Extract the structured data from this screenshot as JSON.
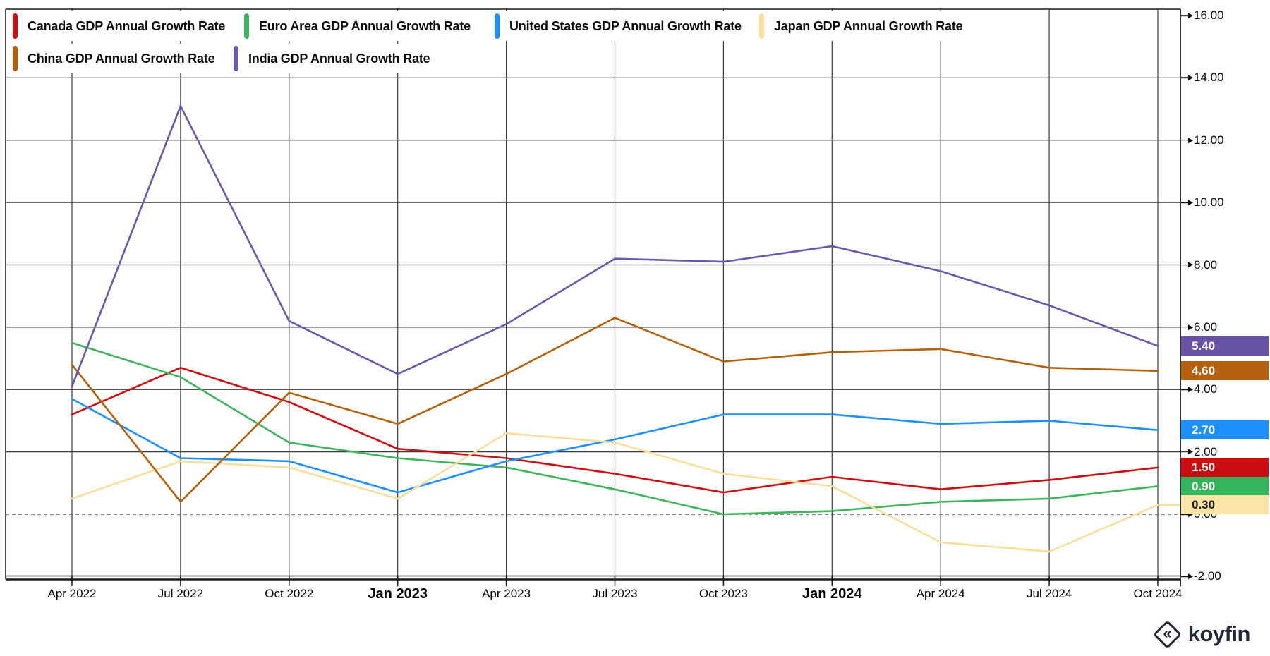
{
  "chart_data": {
    "type": "line",
    "x": [
      "Apr 2022",
      "Jul 2022",
      "Oct 2022",
      "Jan 2023",
      "Apr 2023",
      "Jul 2023",
      "Oct 2023",
      "Jan 2024",
      "Apr 2024",
      "Jul 2024",
      "Oct 2024"
    ],
    "x_bold_labels": [
      "Jan 2023",
      "Jan 2024"
    ],
    "y_axis": {
      "ticks": [
        "16.00",
        "14.00",
        "12.00",
        "10.00",
        "8.00",
        "6.00",
        "4.00",
        "2.00",
        "0.00",
        "-2.00"
      ],
      "range": [
        -2,
        16
      ],
      "gridline_values": [
        14,
        12,
        10,
        8,
        6,
        4,
        2
      ],
      "zero_line": "dashed"
    },
    "grid": true,
    "legend_position": "top-left",
    "series": [
      {
        "key": "canada",
        "label": "Canada GDP Annual Growth Rate",
        "color": "#CE0E13",
        "badge": {
          "label": "1.50",
          "bg": "#C90D12",
          "text_color": "#FFFFFF"
        },
        "values": [
          3.2,
          4.7,
          3.6,
          2.1,
          1.8,
          1.3,
          0.7,
          1.2,
          0.8,
          1.1,
          1.5
        ]
      },
      {
        "key": "euro-area",
        "label": "Euro Area GDP Annual Growth Rate",
        "color": "#3FB45C",
        "badge": {
          "label": "0.90",
          "bg": "#34B45A",
          "text_color": "#FFFFFF"
        },
        "values": [
          5.5,
          4.4,
          2.3,
          1.8,
          1.5,
          0.8,
          0.0,
          0.1,
          0.4,
          0.5,
          0.9
        ]
      },
      {
        "key": "united-states",
        "label": "United States GDP Annual Growth Rate",
        "color": "#1F8FFF",
        "badge": {
          "label": "2.70",
          "bg": "#1E8FFF",
          "text_color": "#FFFFFF"
        },
        "values": [
          3.7,
          1.8,
          1.7,
          0.7,
          1.7,
          2.4,
          3.2,
          3.2,
          2.9,
          3.0,
          2.7
        ]
      },
      {
        "key": "japan",
        "label": "Japan GDP Annual Growth Rate",
        "color": "#F8DF9C",
        "badge": {
          "label": "0.30",
          "bg": "#FAE3A6",
          "text_color": "#1D1D1D"
        },
        "values": [
          0.5,
          1.7,
          1.5,
          0.5,
          2.6,
          2.3,
          1.3,
          0.9,
          -0.9,
          -1.2,
          0.3
        ],
        "tail_to_axis": true
      },
      {
        "key": "china",
        "label": "China GDP Annual Growth Rate",
        "color": "#B4610D",
        "badge": {
          "label": "4.60",
          "bg": "#B4600E",
          "text_color": "#FFFFFF"
        },
        "values": [
          4.8,
          0.4,
          3.9,
          2.9,
          4.5,
          6.3,
          4.9,
          5.2,
          5.3,
          4.7,
          4.6
        ]
      },
      {
        "key": "india",
        "label": "India GDP Annual Growth Rate",
        "color": "#6A58AC",
        "badge": {
          "label": "5.40",
          "bg": "#6951A6",
          "text_color": "#FFFFFF"
        },
        "values": [
          4.1,
          13.1,
          6.2,
          4.5,
          6.1,
          8.2,
          8.1,
          8.6,
          7.8,
          6.7,
          5.4
        ]
      }
    ]
  },
  "footer": {
    "logo_text": "koyfin"
  }
}
